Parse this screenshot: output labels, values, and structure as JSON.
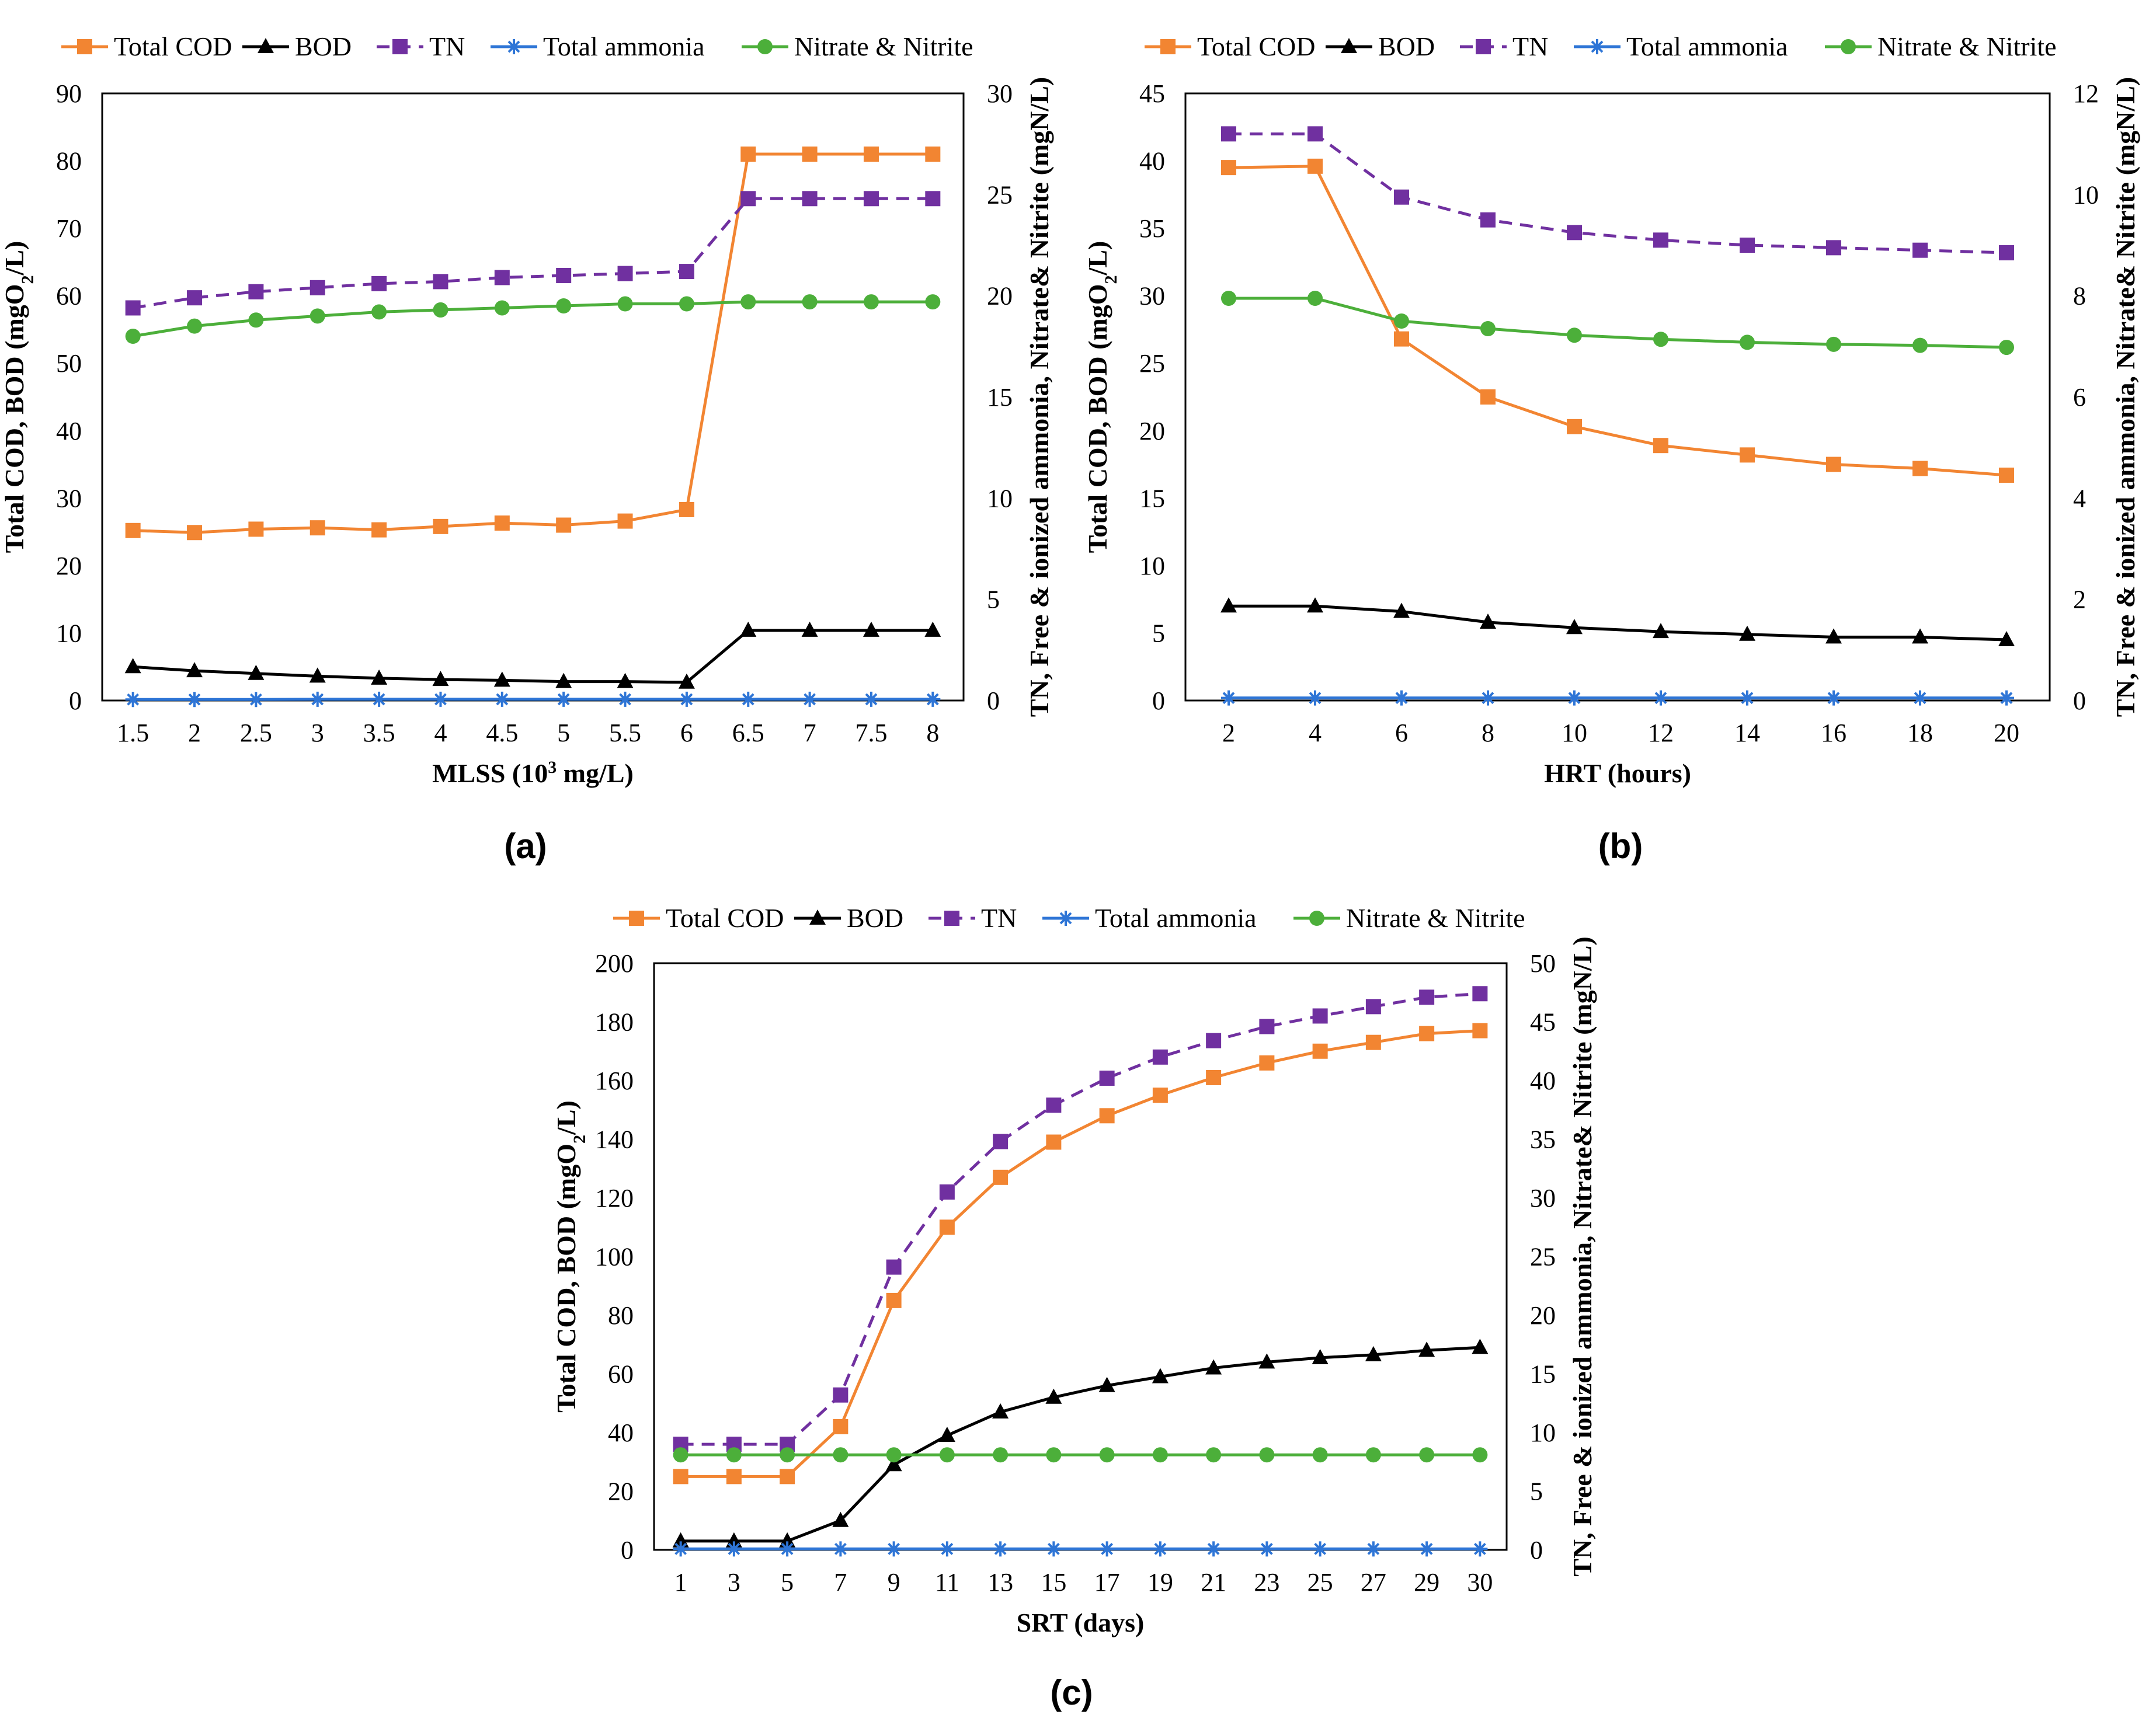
{
  "colors": {
    "cod": "#F28532",
    "bod": "#000000",
    "tn": "#7030A0",
    "ammonia": "#2E75D6",
    "nitrate": "#4CAF3A",
    "frame": "#000000"
  },
  "chart_data": [
    {
      "type": "line",
      "panel_label": "(a)",
      "title": "",
      "xlabel": "MLSS (10",
      "xlabel_sup": "3",
      "xlabel_tail": " mg/L)",
      "ylabel": "Total COD, BOD (mgO",
      "ylabel_sub": "2",
      "ylabel_tail": "/L)",
      "y2label": "TN, Free & ionized ammonia, Nitrate& Nitrite (mgN/L)",
      "categories": [
        "1.5",
        "2",
        "2.5",
        "3",
        "3.5",
        "4",
        "4.5",
        "5",
        "5.5",
        "6",
        "6.5",
        "7",
        "7.5",
        "8"
      ],
      "ylim": [
        0,
        90
      ],
      "yticks": [
        "0",
        "10",
        "20",
        "30",
        "40",
        "50",
        "60",
        "70",
        "80",
        "90"
      ],
      "y2lim": [
        0,
        30
      ],
      "y2ticks": [
        "0",
        "5",
        "10",
        "15",
        "20",
        "25",
        "30"
      ],
      "legend_position": "top",
      "series": [
        {
          "name": "Total COD",
          "axis": "left",
          "marker": "square",
          "values": [
            25.2,
            24.9,
            25.4,
            25.6,
            25.3,
            25.8,
            26.3,
            26.0,
            26.6,
            28.3,
            81.0,
            81.0,
            81.0,
            81.0
          ]
        },
        {
          "name": "BOD",
          "axis": "left",
          "marker": "triangle",
          "values": [
            5.0,
            4.4,
            4.0,
            3.6,
            3.3,
            3.1,
            3.0,
            2.8,
            2.8,
            2.7,
            10.4,
            10.4,
            10.4,
            10.4
          ]
        },
        {
          "name": "TN",
          "axis": "right",
          "marker": "square",
          "dashed": true,
          "values": [
            19.4,
            19.9,
            20.2,
            20.4,
            20.6,
            20.7,
            20.9,
            21.0,
            21.1,
            21.2,
            24.8,
            24.8,
            24.8,
            24.8
          ]
        },
        {
          "name": "Total ammonia",
          "axis": "right",
          "marker": "star",
          "values": [
            0.05,
            0.05,
            0.05,
            0.06,
            0.06,
            0.06,
            0.06,
            0.06,
            0.06,
            0.06,
            0.06,
            0.06,
            0.06,
            0.06
          ]
        },
        {
          "name": "Nitrate & Nitrite",
          "axis": "right",
          "marker": "circle",
          "values": [
            18.0,
            18.5,
            18.8,
            19.0,
            19.2,
            19.3,
            19.4,
            19.5,
            19.6,
            19.6,
            19.7,
            19.7,
            19.7,
            19.7
          ]
        }
      ]
    },
    {
      "type": "line",
      "panel_label": "(b)",
      "title": "",
      "xlabel": "HRT (hours)",
      "xlabel_sup": "",
      "xlabel_tail": "",
      "ylabel": "Total COD, BOD (mgO",
      "ylabel_sub": "2",
      "ylabel_tail": "/L)",
      "y2label": "TN, Free & ionized ammonia, Nitrate& Nitrite (mgN/L)",
      "categories": [
        "2",
        "4",
        "6",
        "8",
        "10",
        "12",
        "14",
        "16",
        "18",
        "20"
      ],
      "ylim": [
        0,
        45
      ],
      "yticks": [
        "0",
        "5",
        "10",
        "15",
        "20",
        "25",
        "30",
        "35",
        "40",
        "45"
      ],
      "y2lim": [
        0,
        12
      ],
      "y2ticks": [
        "0",
        "2",
        "4",
        "6",
        "8",
        "10",
        "12"
      ],
      "legend_position": "top",
      "series": [
        {
          "name": "Total COD",
          "axis": "left",
          "marker": "square",
          "values": [
            39.5,
            39.6,
            26.8,
            22.5,
            20.3,
            18.9,
            18.2,
            17.5,
            17.2,
            16.7
          ]
        },
        {
          "name": "BOD",
          "axis": "left",
          "marker": "triangle",
          "values": [
            7.0,
            7.0,
            6.6,
            5.8,
            5.4,
            5.1,
            4.9,
            4.7,
            4.7,
            4.5
          ]
        },
        {
          "name": "TN",
          "axis": "right",
          "marker": "square",
          "dashed": true,
          "values": [
            11.2,
            11.2,
            9.95,
            9.5,
            9.25,
            9.1,
            9.0,
            8.95,
            8.9,
            8.85
          ]
        },
        {
          "name": "Total ammonia",
          "axis": "right",
          "marker": "star",
          "values": [
            0.05,
            0.05,
            0.05,
            0.05,
            0.05,
            0.05,
            0.05,
            0.05,
            0.05,
            0.05
          ]
        },
        {
          "name": "Nitrate & Nitrite",
          "axis": "right",
          "marker": "circle",
          "values": [
            7.95,
            7.95,
            7.5,
            7.35,
            7.22,
            7.14,
            7.08,
            7.04,
            7.02,
            6.98
          ]
        }
      ]
    },
    {
      "type": "line",
      "panel_label": "(c)",
      "title": "",
      "xlabel": "SRT (days)",
      "xlabel_sup": "",
      "xlabel_tail": "",
      "ylabel": "Total COD, BOD (mgO",
      "ylabel_sub": "2",
      "ylabel_tail": "/L)",
      "y2label": "TN, Free & ionized ammonia, Nitrate& Nitrite (mgN/L)",
      "categories": [
        "1",
        "3",
        "5",
        "7",
        "9",
        "11",
        "13",
        "15",
        "17",
        "19",
        "21",
        "23",
        "25",
        "27",
        "29",
        "30"
      ],
      "ylim": [
        0,
        200
      ],
      "yticks": [
        "0",
        "20",
        "40",
        "60",
        "80",
        "100",
        "120",
        "140",
        "160",
        "180",
        "200"
      ],
      "y2lim": [
        0,
        50
      ],
      "y2ticks": [
        "0",
        "5",
        "10",
        "15",
        "20",
        "25",
        "30",
        "35",
        "40",
        "45",
        "50"
      ],
      "legend_position": "top",
      "series": [
        {
          "name": "Total COD",
          "axis": "left",
          "marker": "square",
          "values": [
            25,
            25,
            25,
            42,
            85,
            110,
            127,
            139,
            148,
            155,
            161,
            166,
            170,
            173,
            176,
            177
          ]
        },
        {
          "name": "BOD",
          "axis": "left",
          "marker": "triangle",
          "values": [
            3,
            3,
            3,
            10,
            29,
            39,
            47,
            52,
            56,
            59,
            62,
            64,
            65.5,
            66.5,
            68,
            69
          ]
        },
        {
          "name": "TN",
          "axis": "right",
          "marker": "square",
          "dashed": true,
          "values": [
            9,
            9,
            9,
            13.2,
            24.1,
            30.5,
            34.8,
            37.9,
            40.2,
            42.0,
            43.4,
            44.6,
            45.5,
            46.3,
            47.1,
            47.4
          ]
        },
        {
          "name": "Total ammonia",
          "axis": "right",
          "marker": "star",
          "values": [
            0.08,
            0.08,
            0.08,
            0.08,
            0.08,
            0.08,
            0.08,
            0.08,
            0.08,
            0.08,
            0.08,
            0.08,
            0.08,
            0.08,
            0.08,
            0.08
          ]
        },
        {
          "name": "Nitrate & Nitrite",
          "axis": "right",
          "marker": "circle",
          "values": [
            8.1,
            8.1,
            8.1,
            8.1,
            8.1,
            8.1,
            8.1,
            8.1,
            8.1,
            8.1,
            8.1,
            8.1,
            8.1,
            8.1,
            8.1,
            8.1
          ]
        }
      ]
    }
  ]
}
